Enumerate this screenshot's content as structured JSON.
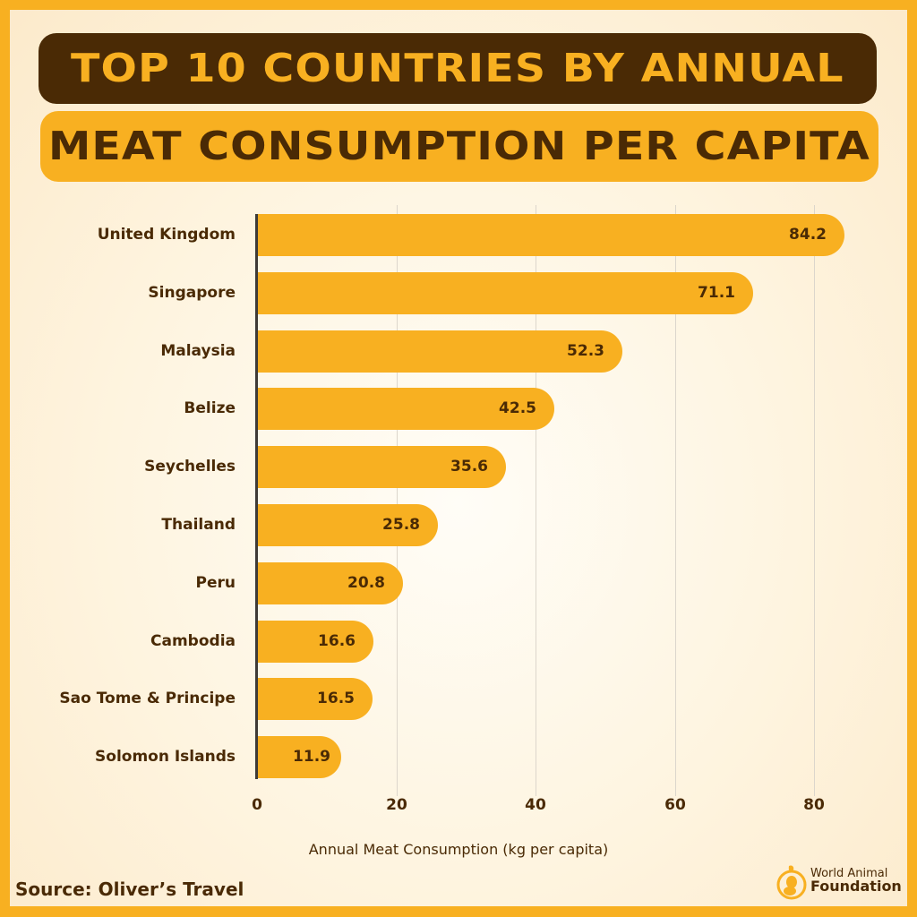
{
  "header": {
    "title_line1": "TOP 10 COUNTRIES BY ANNUAL",
    "title_line2": "MEAT CONSUMPTION PER CAPITA"
  },
  "footer": {
    "source": "Source: Oliver’s Travel",
    "logo_line1": "World Animal",
    "logo_line2": "Foundation",
    "logo_icon": "animal-foundation-logo-icon"
  },
  "colors": {
    "border": "#F8B021",
    "bar": "#F8B021",
    "dark": "#4A2A05",
    "background": "#FEF4DF"
  },
  "chart_data": {
    "type": "bar",
    "orientation": "horizontal",
    "title": "Top 10 Countries by Annual Meat Consumption per Capita",
    "xlabel": "Annual Meat Consumption (kg per capita)",
    "ylabel": "",
    "xlim": [
      0,
      90
    ],
    "xticks": [
      "0",
      "20",
      "40",
      "60",
      "80"
    ],
    "grid": "vertical",
    "legend": "none",
    "categories": [
      "United Kingdom",
      "Singapore",
      "Malaysia",
      "Belize",
      "Seychelles",
      "Thailand",
      "Peru",
      "Cambodia",
      "Sao Tome & Principe",
      "Solomon Islands"
    ],
    "values": [
      84.2,
      71.1,
      52.3,
      42.5,
      35.6,
      25.8,
      20.8,
      16.6,
      16.5,
      11.9
    ],
    "value_labels": [
      "84.2",
      "71.1",
      "52.3",
      "42.5",
      "35.6",
      "25.8",
      "20.8",
      "16.6",
      "16.5",
      "11.9"
    ]
  }
}
